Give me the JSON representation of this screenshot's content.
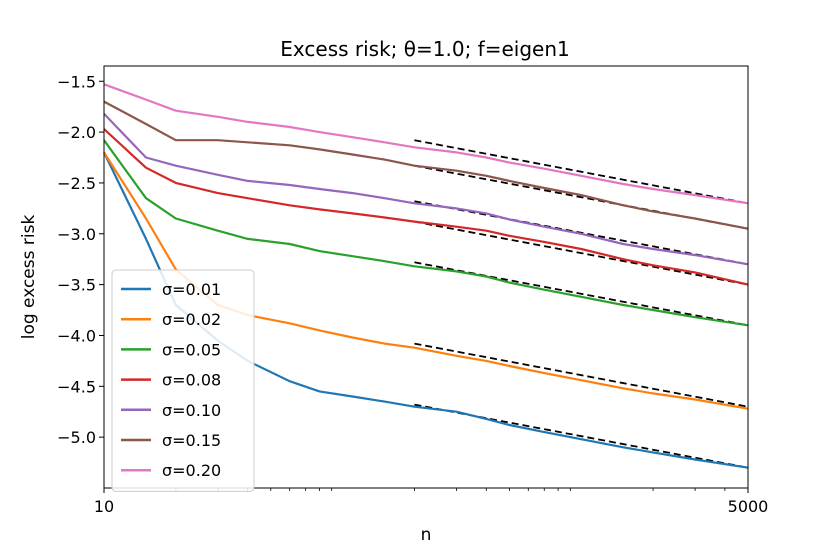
{
  "chart_data": {
    "type": "line",
    "title": "Excess risk; θ=1.0;  f=eigen1",
    "xlabel": "n",
    "ylabel": "log excess risk",
    "xscale": "log",
    "xlim": [
      10,
      5000
    ],
    "ylim": [
      -5.5,
      -1.35
    ],
    "xticks": [
      10,
      5000
    ],
    "xtick_labels": [
      "10",
      "5000"
    ],
    "yticks": [
      -1.5,
      -2.0,
      -2.5,
      -3.0,
      -3.5,
      -4.0,
      -4.5,
      -5.0
    ],
    "ytick_labels": [
      "−1.5",
      "−2.0",
      "−2.5",
      "−3.0",
      "−3.5",
      "−4.0",
      "−4.5",
      "−5.0"
    ],
    "legend_position": "lower-left",
    "grid": false,
    "series": [
      {
        "name": "σ=0.01",
        "color": "#1f77b4",
        "x": [
          10,
          15,
          20,
          30,
          40,
          60,
          80,
          110,
          150,
          200,
          300,
          400,
          500,
          700,
          1000,
          1500,
          2000,
          3000,
          5000
        ],
        "y": [
          -2.2,
          -3.05,
          -3.7,
          -4.05,
          -4.25,
          -4.45,
          -4.55,
          -4.6,
          -4.65,
          -4.7,
          -4.75,
          -4.82,
          -4.88,
          -4.95,
          -5.02,
          -5.1,
          -5.15,
          -5.22,
          -5.3
        ]
      },
      {
        "name": "σ=0.02",
        "color": "#ff7f0e",
        "x": [
          10,
          15,
          20,
          30,
          40,
          60,
          80,
          110,
          150,
          200,
          300,
          400,
          500,
          700,
          1000,
          1500,
          2000,
          3000,
          5000
        ],
        "y": [
          -2.2,
          -2.85,
          -3.35,
          -3.7,
          -3.8,
          -3.88,
          -3.95,
          -4.02,
          -4.08,
          -4.12,
          -4.2,
          -4.25,
          -4.3,
          -4.37,
          -4.44,
          -4.52,
          -4.57,
          -4.63,
          -4.72
        ]
      },
      {
        "name": "σ=0.05",
        "color": "#2ca02c",
        "x": [
          10,
          15,
          20,
          30,
          40,
          60,
          80,
          110,
          150,
          200,
          300,
          400,
          500,
          700,
          1000,
          1500,
          2000,
          3000,
          5000
        ],
        "y": [
          -2.08,
          -2.65,
          -2.85,
          -2.97,
          -3.05,
          -3.1,
          -3.17,
          -3.22,
          -3.27,
          -3.32,
          -3.37,
          -3.42,
          -3.48,
          -3.55,
          -3.62,
          -3.7,
          -3.75,
          -3.82,
          -3.9
        ]
      },
      {
        "name": "σ=0.08",
        "color": "#d62728",
        "x": [
          10,
          15,
          20,
          30,
          40,
          60,
          80,
          110,
          150,
          200,
          300,
          400,
          500,
          700,
          1000,
          1500,
          2000,
          3000,
          5000
        ],
        "y": [
          -1.97,
          -2.35,
          -2.5,
          -2.6,
          -2.65,
          -2.72,
          -2.76,
          -2.8,
          -2.84,
          -2.88,
          -2.93,
          -2.97,
          -3.02,
          -3.08,
          -3.15,
          -3.25,
          -3.31,
          -3.38,
          -3.5
        ]
      },
      {
        "name": "σ=0.10",
        "color": "#9467bd",
        "x": [
          10,
          15,
          20,
          30,
          40,
          60,
          80,
          110,
          150,
          200,
          300,
          400,
          500,
          700,
          1000,
          1500,
          2000,
          3000,
          5000
        ],
        "y": [
          -1.82,
          -2.25,
          -2.33,
          -2.42,
          -2.48,
          -2.52,
          -2.56,
          -2.6,
          -2.65,
          -2.7,
          -2.75,
          -2.8,
          -2.86,
          -2.93,
          -3.0,
          -3.1,
          -3.15,
          -3.21,
          -3.3
        ]
      },
      {
        "name": "σ=0.15",
        "color": "#8c564b",
        "x": [
          10,
          15,
          20,
          30,
          40,
          60,
          80,
          110,
          150,
          200,
          300,
          400,
          500,
          700,
          1000,
          1500,
          2000,
          3000,
          5000
        ],
        "y": [
          -1.7,
          -1.92,
          -2.08,
          -2.08,
          -2.1,
          -2.13,
          -2.17,
          -2.22,
          -2.27,
          -2.33,
          -2.38,
          -2.43,
          -2.48,
          -2.55,
          -2.62,
          -2.72,
          -2.78,
          -2.85,
          -2.95
        ]
      },
      {
        "name": "σ=0.20",
        "color": "#e377c2",
        "x": [
          10,
          15,
          20,
          30,
          40,
          60,
          80,
          110,
          150,
          200,
          300,
          400,
          500,
          700,
          1000,
          1500,
          2000,
          3000,
          5000
        ],
        "y": [
          -1.53,
          -1.68,
          -1.79,
          -1.85,
          -1.9,
          -1.95,
          -2.0,
          -2.05,
          -2.1,
          -2.15,
          -2.2,
          -2.25,
          -2.3,
          -2.36,
          -2.43,
          -2.51,
          -2.56,
          -2.62,
          -2.7
        ]
      }
    ],
    "reference_lines": [
      {
        "x": [
          200,
          5000
        ],
        "y": [
          -4.68,
          -5.3
        ]
      },
      {
        "x": [
          200,
          5000
        ],
        "y": [
          -4.08,
          -4.7
        ]
      },
      {
        "x": [
          200,
          5000
        ],
        "y": [
          -3.28,
          -3.9
        ]
      },
      {
        "x": [
          200,
          5000
        ],
        "y": [
          -2.88,
          -3.5
        ]
      },
      {
        "x": [
          200,
          5000
        ],
        "y": [
          -2.68,
          -3.3
        ]
      },
      {
        "x": [
          200,
          5000
        ],
        "y": [
          -2.33,
          -2.95
        ]
      },
      {
        "x": [
          200,
          5000
        ],
        "y": [
          -2.08,
          -2.7
        ]
      }
    ]
  }
}
